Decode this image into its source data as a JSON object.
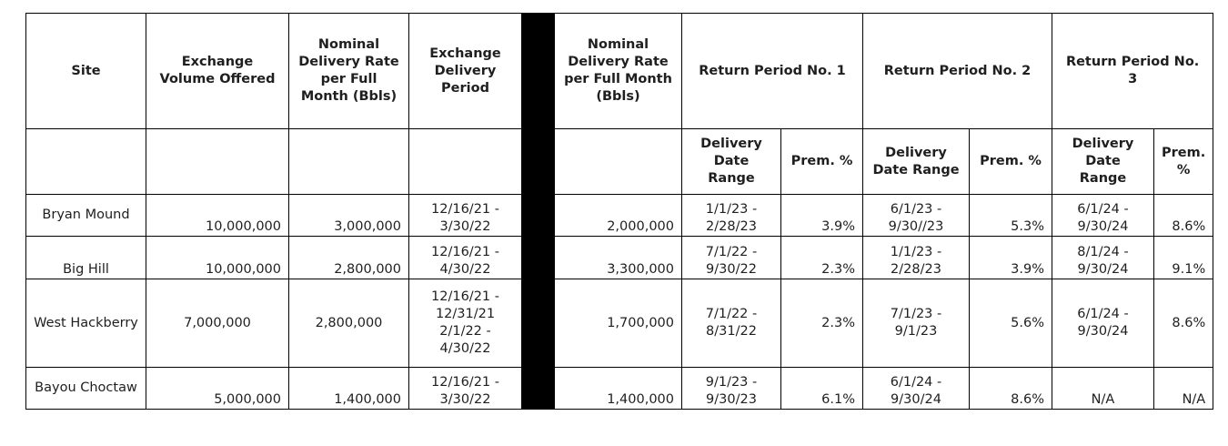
{
  "headers": {
    "site": "Site",
    "volume": "Exchange Volume Offered",
    "nominal_rate": "Nominal Delivery Rate per Full Month (Bbls)",
    "exchange_period": "Exchange Delivery Period",
    "nominal_rate_2": "Nominal Delivery Rate per Full Month (Bbls)",
    "return_1": "Return Period  No. 1",
    "return_2": "Return Period No. 2",
    "return_3": "Return Period No. 3"
  },
  "subheaders": {
    "delivery_date_range": "Delivery Date Range",
    "prem": "Prem. %"
  },
  "rows": [
    {
      "site": "Bryan Mound",
      "volume": "10,000,000",
      "rate": "3,000,000",
      "period": "12/16/21 - 3/30/22",
      "rate2": "2,000,000",
      "r1_range": "1/1/23 - 2/28/23",
      "r1_prem": "3.9%",
      "r2_range": "6/1/23 - 9/30//23",
      "r2_prem": "5.3%",
      "r3_range": "6/1/24 - 9/30/24",
      "r3_prem": "8.6%"
    },
    {
      "site": "Big Hill",
      "volume": "10,000,000",
      "rate": "2,800,000",
      "period": "12/16/21 - 4/30/22",
      "rate2": "3,300,000",
      "r1_range": "7/1/22 - 9/30/22",
      "r1_prem": "2.3%",
      "r2_range": "1/1/23 - 2/28/23",
      "r2_prem": "3.9%",
      "r3_range": "8/1/24 - 9/30/24",
      "r3_prem": "9.1%"
    },
    {
      "site": "West Hackberry",
      "volume": "7,000,000",
      "rate": "2,800,000",
      "period": "12/16/21 - 12/31/21 2/1/22 - 4/30/22",
      "rate2": "1,700,000",
      "r1_range": "7/1/22 - 8/31/22",
      "r1_prem": "2.3%",
      "r2_range": "7/1/23 - 9/1/23",
      "r2_prem": "5.6%",
      "r3_range": "6/1/24 - 9/30/24",
      "r3_prem": "8.6%"
    },
    {
      "site": "Bayou Choctaw",
      "volume": "5,000,000",
      "rate": "1,400,000",
      "period": "12/16/21 - 3/30/22",
      "rate2": "1,400,000",
      "r1_range": "9/1/23 - 9/30/23",
      "r1_prem": "6.1%",
      "r2_range": "6/1/24 - 9/30/24",
      "r2_prem": "8.6%",
      "r3_range": "N/A",
      "r3_prem": "N/A"
    }
  ]
}
